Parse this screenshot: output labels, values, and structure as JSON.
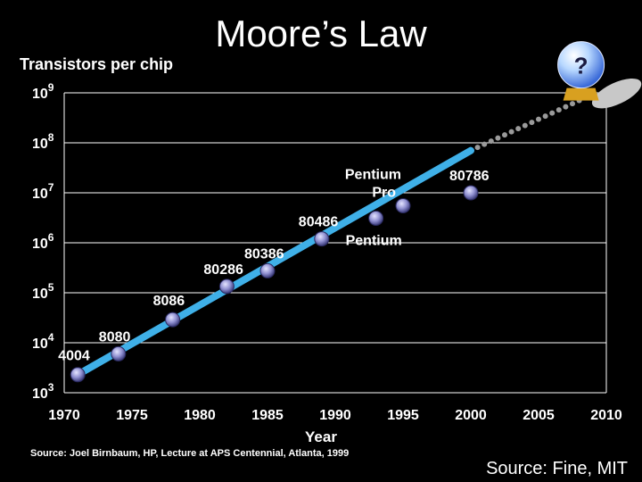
{
  "title": "Moore’s Law",
  "source_left": "Source: Joel Birnbaum, HP, Lecture at APS Centennial, Atlanta, 1999",
  "source_right": "Source: Fine, MIT",
  "crystal_ball_label": "?",
  "colors": {
    "background": "#000000",
    "trend_line": "#3fb0e8",
    "point_fill": "#8f8fd0",
    "projection_dots": "#9a9a9a",
    "text": "#ffffff"
  },
  "icons": [
    "crystal-ball-icon"
  ],
  "chart_data": {
    "type": "scatter",
    "title": "Moore’s Law",
    "xlabel": "Year",
    "ylabel": "Transistors per chip",
    "y_scale": "log",
    "xlim": [
      1970,
      2010
    ],
    "ylim": [
      1000,
      1000000000
    ],
    "x_ticks": [
      "1970",
      "1975",
      "1980",
      "1985",
      "1990",
      "1995",
      "2000",
      "2005",
      "2010"
    ],
    "y_tick_labels": [
      {
        "base": "10",
        "exp": "3"
      },
      {
        "base": "10",
        "exp": "4"
      },
      {
        "base": "10",
        "exp": "5"
      },
      {
        "base": "10",
        "exp": "6"
      },
      {
        "base": "10",
        "exp": "7"
      },
      {
        "base": "10",
        "exp": "8"
      },
      {
        "base": "10",
        "exp": "9"
      }
    ],
    "y_tick_values": [
      1000,
      10000,
      100000,
      1000000,
      10000000,
      100000000,
      1000000000
    ],
    "grid": "horizontal",
    "trend_line": {
      "x": [
        1971,
        2000
      ],
      "y": [
        2300,
        70000000
      ]
    },
    "projection": {
      "x": [
        2000,
        2008
      ],
      "y": [
        70000000,
        700000000
      ]
    },
    "points": [
      {
        "label": "4004",
        "x": 1971,
        "y": 2300
      },
      {
        "label": "8080",
        "x": 1974,
        "y": 6000
      },
      {
        "label": "8086",
        "x": 1978,
        "y": 29000
      },
      {
        "label": "80286",
        "x": 1982,
        "y": 134000
      },
      {
        "label": "80386",
        "x": 1985,
        "y": 275000
      },
      {
        "label": "80486",
        "x": 1989,
        "y": 1200000
      },
      {
        "label": "Pentium",
        "x": 1993,
        "y": 3100000
      },
      {
        "label": "Pentium Pro",
        "x": 1995,
        "y": 5500000
      },
      {
        "label": "80786",
        "x": 2000,
        "y": 10000000
      }
    ]
  }
}
